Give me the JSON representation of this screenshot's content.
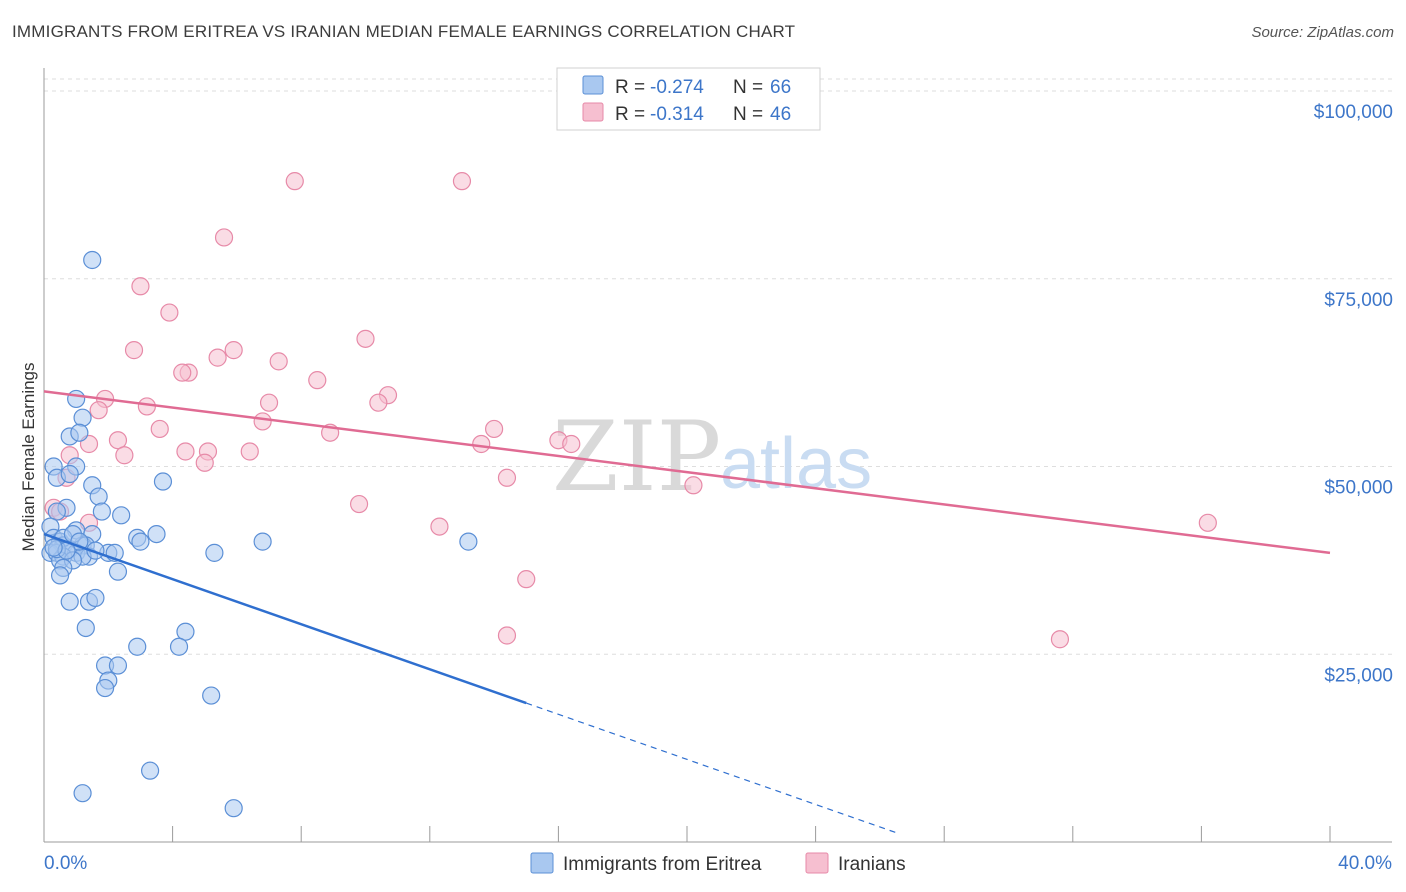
{
  "header": {
    "title": "IMMIGRANTS FROM ERITREA VS IRANIAN MEDIAN FEMALE EARNINGS CORRELATION CHART",
    "source": "Source: ZipAtlas.com"
  },
  "watermark": {
    "zip": "ZIP",
    "atlas": "atlas"
  },
  "colors": {
    "eritrea_fill": "#a9c8f0",
    "eritrea_stroke": "#5b8fd6",
    "eritrea_line": "#2f6fcf",
    "iranian_fill": "#f6bfd0",
    "iranian_stroke": "#e78aa8",
    "iranian_line": "#e06b93",
    "axis_label": "#3d76c9",
    "grid": "#dedede"
  },
  "legend": {
    "rows": [
      {
        "r_label": "R = ",
        "r_value": "-0.274",
        "n_label": "N = ",
        "n_value": "66"
      },
      {
        "r_label": "R = ",
        "r_value": "-0.314",
        "n_label": "N = ",
        "n_value": "46"
      }
    ]
  },
  "chart_data": {
    "type": "scatter",
    "title": "IMMIGRANTS FROM ERITREA VS IRANIAN MEDIAN FEMALE EARNINGS CORRELATION CHART",
    "xlabel": "",
    "ylabel": "Median Female Earnings",
    "xlim": [
      0,
      40
    ],
    "ylim": [
      0,
      102000
    ],
    "x_tick_labels": {
      "min": "0.0%",
      "max": "40.0%"
    },
    "y_ticks": [
      {
        "value": 25000,
        "label": "$25,000"
      },
      {
        "value": 50000,
        "label": "$50,000"
      },
      {
        "value": 75000,
        "label": "$75,000"
      },
      {
        "value": 100000,
        "label": "$100,000"
      }
    ],
    "grid": true,
    "series": [
      {
        "name": "Immigrants from Eritrea",
        "r": -0.274,
        "n": 66,
        "trend": {
          "x_start": 0,
          "y_start": 41000,
          "x_end": 15,
          "y_end": 18500,
          "dashed_to_x": 26.5
        },
        "points": [
          [
            1.5,
            77500
          ],
          [
            1.0,
            59000
          ],
          [
            1.2,
            56500
          ],
          [
            0.8,
            54000
          ],
          [
            1.1,
            54500
          ],
          [
            1.0,
            50000
          ],
          [
            0.3,
            50000
          ],
          [
            0.4,
            48500
          ],
          [
            0.8,
            49000
          ],
          [
            1.5,
            47500
          ],
          [
            1.7,
            46000
          ],
          [
            3.7,
            48000
          ],
          [
            0.7,
            44500
          ],
          [
            0.4,
            44000
          ],
          [
            1.8,
            44000
          ],
          [
            2.4,
            43500
          ],
          [
            0.2,
            42000
          ],
          [
            1.0,
            41500
          ],
          [
            1.5,
            41000
          ],
          [
            0.3,
            40500
          ],
          [
            0.5,
            40000
          ],
          [
            3.5,
            41000
          ],
          [
            2.9,
            40500
          ],
          [
            3.0,
            40000
          ],
          [
            6.8,
            40000
          ],
          [
            0.6,
            39500
          ],
          [
            1.2,
            39500
          ],
          [
            1.3,
            39500
          ],
          [
            0.8,
            39000
          ],
          [
            0.2,
            38500
          ],
          [
            0.4,
            38500
          ],
          [
            1.0,
            38500
          ],
          [
            1.4,
            38000
          ],
          [
            2.0,
            38500
          ],
          [
            2.2,
            38500
          ],
          [
            5.3,
            38500
          ],
          [
            0.6,
            38000
          ],
          [
            1.2,
            38000
          ],
          [
            0.5,
            37500
          ],
          [
            0.9,
            37500
          ],
          [
            0.6,
            36500
          ],
          [
            0.5,
            35500
          ],
          [
            2.3,
            36000
          ],
          [
            13.2,
            40000
          ],
          [
            0.8,
            32000
          ],
          [
            1.4,
            32000
          ],
          [
            1.6,
            32500
          ],
          [
            1.3,
            28500
          ],
          [
            4.4,
            28000
          ],
          [
            2.9,
            26000
          ],
          [
            4.2,
            26000
          ],
          [
            1.9,
            23500
          ],
          [
            2.3,
            23500
          ],
          [
            2.0,
            21500
          ],
          [
            1.9,
            20500
          ],
          [
            5.2,
            19500
          ],
          [
            3.3,
            9500
          ],
          [
            1.2,
            6500
          ],
          [
            5.9,
            4500
          ],
          [
            0.6,
            40500
          ],
          [
            0.9,
            41000
          ],
          [
            1.1,
            40000
          ],
          [
            0.4,
            39000
          ],
          [
            0.7,
            38800
          ],
          [
            1.6,
            38800
          ],
          [
            0.3,
            39200
          ]
        ]
      },
      {
        "name": "Iranians",
        "r": -0.314,
        "n": 46,
        "trend": {
          "x_start": 0,
          "y_start": 60000,
          "x_end": 40,
          "y_end": 38500
        },
        "points": [
          [
            7.8,
            88000
          ],
          [
            13.0,
            88000
          ],
          [
            5.6,
            80500
          ],
          [
            3.0,
            74000
          ],
          [
            3.9,
            70500
          ],
          [
            10.0,
            67000
          ],
          [
            2.8,
            65500
          ],
          [
            5.9,
            65500
          ],
          [
            5.4,
            64500
          ],
          [
            7.3,
            64000
          ],
          [
            4.5,
            62500
          ],
          [
            4.3,
            62500
          ],
          [
            8.5,
            61500
          ],
          [
            1.9,
            59000
          ],
          [
            10.7,
            59500
          ],
          [
            7.0,
            58500
          ],
          [
            3.2,
            58000
          ],
          [
            10.4,
            58500
          ],
          [
            1.7,
            57500
          ],
          [
            6.8,
            56000
          ],
          [
            3.6,
            55000
          ],
          [
            8.9,
            54500
          ],
          [
            14.0,
            55000
          ],
          [
            2.3,
            53500
          ],
          [
            1.4,
            53000
          ],
          [
            13.6,
            53000
          ],
          [
            16.0,
            53500
          ],
          [
            16.4,
            53000
          ],
          [
            4.4,
            52000
          ],
          [
            5.1,
            52000
          ],
          [
            6.4,
            52000
          ],
          [
            0.8,
            51500
          ],
          [
            2.5,
            51500
          ],
          [
            5.0,
            50500
          ],
          [
            14.4,
            48500
          ],
          [
            20.2,
            47500
          ],
          [
            0.7,
            48500
          ],
          [
            0.3,
            44500
          ],
          [
            0.5,
            44000
          ],
          [
            9.8,
            45000
          ],
          [
            1.4,
            42500
          ],
          [
            12.3,
            42000
          ],
          [
            36.2,
            42500
          ],
          [
            15.0,
            35000
          ],
          [
            14.4,
            27500
          ],
          [
            31.6,
            27000
          ]
        ]
      }
    ],
    "legend_position": "top-center"
  }
}
